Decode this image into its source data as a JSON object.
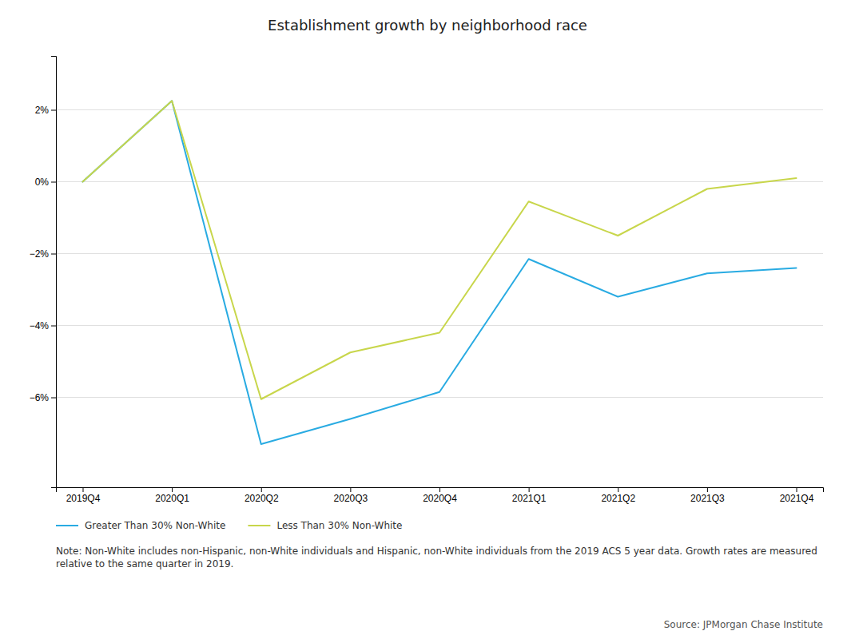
{
  "chart_data": {
    "type": "line",
    "title": "Establishment growth by neighborhood race",
    "categories": [
      "2019Q4",
      "2020Q1",
      "2020Q2",
      "2020Q3",
      "2020Q4",
      "2021Q1",
      "2021Q2",
      "2021Q3",
      "2021Q4"
    ],
    "series": [
      {
        "name": "Greater Than 30% Non-White",
        "color": "#29ABE2",
        "values": [
          0.0,
          2.25,
          -7.3,
          -6.6,
          -5.85,
          -2.15,
          -3.2,
          -2.55,
          -2.4
        ]
      },
      {
        "name": "Less Than 30% Non-White",
        "color": "#C8D64B",
        "values": [
          0.0,
          2.25,
          -6.05,
          -4.75,
          -4.2,
          -0.55,
          -1.5,
          -0.2,
          0.1
        ]
      }
    ],
    "ylim": [
      -8.5,
      3.5
    ],
    "yticks": [
      {
        "value": -6,
        "label": "−6%"
      },
      {
        "value": -4,
        "label": "−4%"
      },
      {
        "value": -2,
        "label": "−2%"
      },
      {
        "value": 0,
        "label": "0%"
      },
      {
        "value": 2,
        "label": "2%"
      }
    ],
    "grid": true,
    "legend": "bottom-left",
    "annotations": [
      "Note: Non-White includes non-Hispanic, non-White individuals and Hispanic, non-White individuals from the 2019 ACS 5 year data. Growth rates are measured relative to the same quarter in 2019.",
      "Source: JPMorgan Chase Institute"
    ]
  }
}
